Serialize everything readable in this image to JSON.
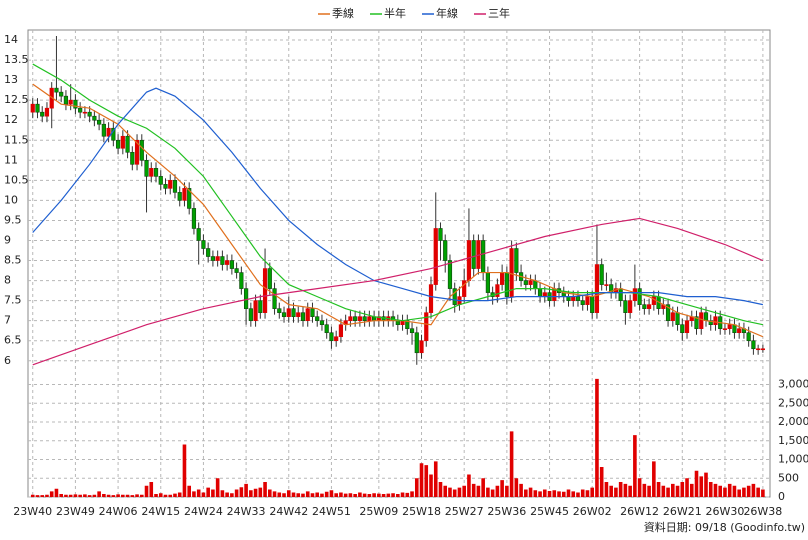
{
  "chart_data": {
    "type": "candlestick",
    "legend_position": "top",
    "grid": true,
    "up_color": "#e00000",
    "down_color": "#00a000",
    "footer": "資料日期: 09/18 (Goodinfo.tw)",
    "xlim": [
      -1,
      155.5
    ],
    "xticks": [
      {
        "value": 0,
        "label": "23W40"
      },
      {
        "value": 9,
        "label": "23W49"
      },
      {
        "value": 18,
        "label": "24W06"
      },
      {
        "value": 27,
        "label": "24W15"
      },
      {
        "value": 36,
        "label": "24W24"
      },
      {
        "value": 45,
        "label": "24W33"
      },
      {
        "value": 54,
        "label": "24W42"
      },
      {
        "value": 63,
        "label": "24W51"
      },
      {
        "value": 73,
        "label": "25W09"
      },
      {
        "value": 82,
        "label": "25W18"
      },
      {
        "value": 91,
        "label": "25W27"
      },
      {
        "value": 100,
        "label": "25W36"
      },
      {
        "value": 109,
        "label": "25W45"
      },
      {
        "value": 118,
        "label": "26W02"
      },
      {
        "value": 128,
        "label": "26W12"
      },
      {
        "value": 137,
        "label": "26W21"
      },
      {
        "value": 146,
        "label": "26W30"
      },
      {
        "value": 154,
        "label": "26W38"
      }
    ],
    "ylim": [
      5.77,
      14.25
    ],
    "yticks": [
      6,
      6.5,
      7,
      7.5,
      8,
      8.5,
      9,
      9.5,
      10,
      10.5,
      11,
      11.5,
      12,
      12.5,
      13,
      13.5,
      14
    ],
    "ohlc": [
      [
        12.2,
        12.55,
        12.05,
        12.4
      ],
      [
        12.4,
        12.55,
        12.05,
        12.2
      ],
      [
        12.2,
        12.35,
        11.95,
        12.1
      ],
      [
        12.1,
        12.45,
        11.95,
        12.3
      ],
      [
        12.3,
        12.95,
        11.8,
        12.8
      ],
      [
        12.8,
        14.1,
        12.5,
        12.7
      ],
      [
        12.7,
        12.85,
        12.45,
        12.6
      ],
      [
        12.6,
        12.75,
        12.25,
        12.4
      ],
      [
        12.4,
        12.9,
        12.25,
        12.5
      ],
      [
        12.5,
        12.65,
        12.15,
        12.3
      ],
      [
        12.3,
        12.45,
        12.05,
        12.2
      ],
      [
        12.2,
        12.35,
        12.05,
        12.2
      ],
      [
        12.2,
        12.35,
        11.95,
        12.1
      ],
      [
        12.1,
        12.25,
        11.85,
        12.0
      ],
      [
        12.0,
        12.15,
        11.75,
        11.9
      ],
      [
        11.9,
        12.05,
        11.45,
        11.6
      ],
      [
        11.6,
        11.95,
        11.45,
        11.8
      ],
      [
        11.8,
        11.95,
        11.35,
        11.5
      ],
      [
        11.5,
        11.65,
        11.15,
        11.3
      ],
      [
        11.3,
        11.75,
        11.15,
        11.6
      ],
      [
        11.6,
        11.75,
        11.05,
        11.2
      ],
      [
        11.2,
        11.35,
        10.75,
        10.9
      ],
      [
        10.9,
        11.65,
        10.75,
        11.5
      ],
      [
        11.5,
        11.65,
        10.85,
        11.0
      ],
      [
        11.0,
        11.15,
        9.7,
        10.6
      ],
      [
        10.6,
        10.95,
        10.45,
        10.8
      ],
      [
        10.8,
        10.95,
        10.45,
        10.6
      ],
      [
        10.6,
        10.75,
        10.25,
        10.4
      ],
      [
        10.4,
        10.55,
        10.15,
        10.3
      ],
      [
        10.3,
        10.65,
        10.15,
        10.5
      ],
      [
        10.5,
        10.65,
        10.05,
        10.2
      ],
      [
        10.2,
        10.35,
        9.85,
        10.0
      ],
      [
        10.0,
        10.45,
        9.85,
        10.3
      ],
      [
        10.3,
        10.45,
        9.65,
        9.8
      ],
      [
        9.8,
        9.95,
        9.15,
        9.3
      ],
      [
        9.3,
        9.45,
        8.4,
        9.0
      ],
      [
        9.0,
        9.15,
        8.65,
        8.8
      ],
      [
        8.8,
        8.95,
        8.45,
        8.6
      ],
      [
        8.6,
        8.75,
        8.35,
        8.5
      ],
      [
        8.5,
        8.75,
        8.35,
        8.6
      ],
      [
        8.6,
        8.75,
        8.25,
        8.4
      ],
      [
        8.4,
        8.65,
        8.25,
        8.5
      ],
      [
        8.5,
        8.65,
        8.15,
        8.3
      ],
      [
        8.3,
        8.45,
        8.05,
        8.2
      ],
      [
        8.2,
        8.35,
        7.65,
        7.8
      ],
      [
        7.8,
        7.95,
        6.9,
        7.3
      ],
      [
        7.3,
        7.45,
        6.85,
        7.0
      ],
      [
        7.0,
        7.65,
        6.85,
        7.5
      ],
      [
        7.5,
        7.65,
        7.05,
        7.2
      ],
      [
        7.2,
        8.8,
        7.05,
        8.3
      ],
      [
        8.3,
        8.45,
        7.65,
        7.8
      ],
      [
        7.8,
        7.95,
        7.15,
        7.3
      ],
      [
        7.3,
        7.45,
        7.05,
        7.2
      ],
      [
        7.2,
        7.35,
        6.95,
        7.1
      ],
      [
        7.1,
        7.6,
        6.95,
        7.3
      ],
      [
        7.3,
        7.45,
        6.95,
        7.1
      ],
      [
        7.1,
        7.35,
        6.95,
        7.2
      ],
      [
        7.2,
        7.35,
        6.85,
        7.0
      ],
      [
        7.0,
        7.45,
        6.85,
        7.3
      ],
      [
        7.3,
        7.45,
        6.95,
        7.1
      ],
      [
        7.1,
        7.25,
        6.85,
        7.0
      ],
      [
        7.0,
        7.15,
        6.75,
        6.9
      ],
      [
        6.9,
        7.05,
        6.55,
        6.7
      ],
      [
        6.7,
        6.85,
        6.3,
        6.5
      ],
      [
        6.5,
        6.75,
        6.35,
        6.6
      ],
      [
        6.6,
        7.05,
        6.45,
        6.9
      ],
      [
        6.9,
        7.15,
        6.75,
        7.0
      ],
      [
        7.0,
        7.25,
        6.85,
        7.1
      ],
      [
        7.1,
        7.25,
        6.85,
        7.0
      ],
      [
        7.0,
        7.25,
        6.85,
        7.1
      ],
      [
        7.1,
        7.25,
        6.85,
        7.0
      ],
      [
        7.0,
        7.25,
        6.85,
        7.1
      ],
      [
        7.1,
        7.25,
        6.85,
        7.0
      ],
      [
        7.0,
        7.25,
        6.85,
        7.1
      ],
      [
        7.1,
        7.25,
        6.85,
        7.0
      ],
      [
        7.0,
        7.25,
        6.85,
        7.1
      ],
      [
        7.1,
        7.25,
        6.85,
        7.0
      ],
      [
        7.0,
        7.15,
        6.75,
        6.9
      ],
      [
        6.9,
        7.15,
        6.75,
        7.0
      ],
      [
        7.0,
        7.15,
        6.65,
        6.8
      ],
      [
        6.8,
        6.95,
        6.4,
        6.7
      ],
      [
        6.7,
        6.85,
        5.9,
        6.2
      ],
      [
        6.2,
        6.65,
        6.05,
        6.5
      ],
      [
        6.5,
        7.35,
        6.35,
        7.2
      ],
      [
        7.2,
        8.1,
        7.05,
        7.9
      ],
      [
        7.9,
        10.2,
        7.75,
        9.3
      ],
      [
        9.3,
        9.45,
        8.5,
        9.0
      ],
      [
        9.0,
        9.15,
        8.2,
        8.5
      ],
      [
        8.5,
        8.65,
        7.5,
        7.8
      ],
      [
        7.8,
        7.95,
        7.2,
        7.4
      ],
      [
        7.4,
        7.85,
        7.25,
        7.6
      ],
      [
        7.6,
        8.3,
        7.45,
        8.0
      ],
      [
        8.0,
        9.8,
        7.85,
        9.0
      ],
      [
        9.0,
        9.15,
        8.1,
        8.3
      ],
      [
        8.3,
        9.15,
        8.15,
        9.0
      ],
      [
        9.0,
        9.15,
        8.0,
        8.2
      ],
      [
        8.2,
        8.35,
        7.5,
        7.7
      ],
      [
        7.7,
        7.85,
        7.4,
        7.6
      ],
      [
        7.6,
        8.05,
        7.45,
        7.9
      ],
      [
        7.9,
        8.4,
        7.75,
        8.2
      ],
      [
        8.2,
        8.35,
        7.4,
        7.6
      ],
      [
        7.6,
        9.0,
        7.45,
        8.8
      ],
      [
        8.8,
        8.95,
        8.0,
        8.2
      ],
      [
        8.2,
        8.4,
        7.85,
        8.0
      ],
      [
        8.0,
        8.15,
        7.75,
        7.9
      ],
      [
        7.9,
        8.15,
        7.75,
        8.0
      ],
      [
        8.0,
        8.15,
        7.65,
        7.8
      ],
      [
        7.8,
        7.95,
        7.45,
        7.6
      ],
      [
        7.6,
        7.85,
        7.45,
        7.7
      ],
      [
        7.7,
        7.85,
        7.35,
        7.5
      ],
      [
        7.5,
        7.95,
        7.35,
        7.8
      ],
      [
        7.8,
        7.95,
        7.55,
        7.7
      ],
      [
        7.7,
        7.85,
        7.45,
        7.6
      ],
      [
        7.6,
        7.75,
        7.35,
        7.5
      ],
      [
        7.5,
        7.75,
        7.35,
        7.6
      ],
      [
        7.6,
        7.75,
        7.35,
        7.5
      ],
      [
        7.5,
        7.65,
        7.25,
        7.4
      ],
      [
        7.4,
        7.75,
        7.25,
        7.6
      ],
      [
        7.6,
        7.75,
        7.05,
        7.2
      ],
      [
        7.2,
        9.4,
        7.05,
        8.4
      ],
      [
        8.4,
        8.55,
        7.75,
        7.9
      ],
      [
        7.9,
        8.2,
        7.75,
        7.9
      ],
      [
        7.9,
        8.05,
        7.55,
        7.7
      ],
      [
        7.7,
        7.95,
        7.55,
        7.8
      ],
      [
        7.8,
        7.95,
        7.35,
        7.5
      ],
      [
        7.5,
        7.65,
        6.9,
        7.2
      ],
      [
        7.2,
        7.65,
        7.05,
        7.5
      ],
      [
        7.5,
        8.4,
        7.35,
        7.8
      ],
      [
        7.8,
        7.95,
        7.25,
        7.4
      ],
      [
        7.4,
        7.55,
        7.15,
        7.3
      ],
      [
        7.3,
        7.55,
        7.15,
        7.4
      ],
      [
        7.4,
        7.75,
        7.25,
        7.6
      ],
      [
        7.6,
        7.75,
        7.15,
        7.3
      ],
      [
        7.3,
        7.55,
        7.15,
        7.4
      ],
      [
        7.4,
        7.55,
        6.85,
        7.0
      ],
      [
        7.0,
        7.35,
        6.85,
        7.2
      ],
      [
        7.2,
        7.35,
        6.75,
        6.9
      ],
      [
        6.9,
        7.05,
        6.5,
        6.7
      ],
      [
        6.7,
        7.15,
        6.55,
        7.0
      ],
      [
        7.0,
        7.25,
        6.85,
        7.1
      ],
      [
        7.1,
        7.25,
        6.65,
        6.8
      ],
      [
        6.8,
        7.35,
        6.65,
        7.2
      ],
      [
        7.2,
        7.35,
        6.85,
        7.0
      ],
      [
        7.0,
        7.15,
        6.75,
        6.9
      ],
      [
        6.9,
        7.25,
        6.75,
        7.1
      ],
      [
        7.1,
        7.25,
        6.65,
        6.8
      ],
      [
        6.8,
        6.95,
        6.65,
        6.8
      ],
      [
        6.8,
        7.05,
        6.65,
        6.9
      ],
      [
        6.9,
        7.05,
        6.55,
        6.7
      ],
      [
        6.7,
        6.95,
        6.55,
        6.8
      ],
      [
        6.8,
        6.95,
        6.55,
        6.7
      ],
      [
        6.7,
        6.85,
        6.35,
        6.5
      ],
      [
        6.5,
        6.65,
        6.15,
        6.3
      ],
      [
        6.3,
        6.4,
        6.15,
        6.3
      ],
      [
        6.3,
        6.4,
        6.2,
        6.3
      ]
    ],
    "series": [
      {
        "name": "季線",
        "color": "#e0701e",
        "x": [
          0,
          6,
          12,
          18,
          24,
          30,
          36,
          42,
          48,
          54,
          60,
          66,
          72,
          78,
          84,
          88,
          94,
          100,
          106,
          112,
          118,
          124,
          130,
          136,
          142,
          148,
          154
        ],
        "values": [
          12.9,
          12.4,
          12.3,
          11.9,
          11.2,
          10.6,
          9.9,
          8.9,
          7.9,
          7.4,
          7.3,
          6.9,
          7.0,
          7.0,
          6.9,
          7.6,
          8.2,
          8.2,
          8.0,
          7.7,
          7.6,
          7.8,
          7.6,
          7.2,
          7.0,
          6.9,
          6.6
        ]
      },
      {
        "name": "半年",
        "color": "#22c022",
        "x": [
          0,
          6,
          12,
          18,
          24,
          30,
          36,
          42,
          48,
          54,
          60,
          66,
          72,
          78,
          84,
          90,
          96,
          102,
          108,
          114,
          120,
          126,
          132,
          138,
          144,
          150,
          154
        ],
        "values": [
          13.4,
          13.0,
          12.5,
          12.1,
          11.8,
          11.3,
          10.6,
          9.6,
          8.6,
          7.9,
          7.6,
          7.3,
          7.1,
          7.0,
          7.1,
          7.4,
          7.6,
          7.8,
          7.8,
          7.7,
          7.7,
          7.7,
          7.6,
          7.4,
          7.2,
          7.0,
          6.9
        ]
      },
      {
        "name": "年線",
        "color": "#1f5fd0",
        "x": [
          0,
          6,
          12,
          18,
          24,
          26,
          30,
          36,
          42,
          48,
          54,
          60,
          66,
          72,
          78,
          84,
          90,
          96,
          102,
          108,
          114,
          120,
          126,
          132,
          138,
          144,
          150,
          154
        ],
        "values": [
          9.2,
          10.0,
          10.9,
          11.9,
          12.7,
          12.8,
          12.6,
          12.0,
          11.2,
          10.3,
          9.5,
          8.9,
          8.4,
          8.0,
          7.8,
          7.6,
          7.5,
          7.5,
          7.6,
          7.6,
          7.6,
          7.7,
          7.7,
          7.7,
          7.6,
          7.6,
          7.5,
          7.4
        ]
      },
      {
        "name": "三年",
        "color": "#d0206a",
        "x": [
          0,
          12,
          24,
          36,
          48,
          60,
          72,
          84,
          96,
          108,
          120,
          128,
          136,
          146,
          154
        ],
        "values": [
          5.9,
          6.4,
          6.9,
          7.3,
          7.6,
          7.8,
          8.0,
          8.3,
          8.7,
          9.1,
          9.4,
          9.55,
          9.3,
          8.9,
          8.5
        ]
      }
    ],
    "volume": {
      "color": "#e00000",
      "ylim": [
        0,
        3200
      ],
      "yticks": [
        0,
        {
          "value": 500,
          "label": "500"
        },
        {
          "value": 1000,
          "label": "1,000"
        },
        {
          "value": 1500,
          "label": "1,500"
        },
        {
          "value": 2000,
          "label": "2,000"
        },
        {
          "value": 2500,
          "label": "2,500"
        },
        {
          "value": 3000,
          "label": "3,000"
        }
      ],
      "values": [
        60,
        50,
        50,
        60,
        150,
        220,
        80,
        60,
        60,
        70,
        60,
        70,
        50,
        60,
        150,
        80,
        60,
        50,
        70,
        60,
        60,
        50,
        70,
        60,
        300,
        400,
        80,
        100,
        60,
        60,
        90,
        120,
        1400,
        300,
        150,
        200,
        120,
        250,
        200,
        500,
        180,
        120,
        100,
        200,
        260,
        350,
        180,
        220,
        250,
        400,
        200,
        150,
        120,
        100,
        180,
        120,
        100,
        90,
        150,
        100,
        120,
        90,
        140,
        180,
        100,
        120,
        90,
        100,
        80,
        120,
        90,
        80,
        100,
        90,
        80,
        90,
        100,
        80,
        120,
        110,
        150,
        500,
        900,
        850,
        600,
        950,
        400,
        300,
        250,
        200,
        250,
        300,
        600,
        350,
        300,
        500,
        250,
        200,
        300,
        450,
        300,
        1750,
        500,
        350,
        200,
        250,
        180,
        150,
        200,
        160,
        180,
        150,
        140,
        200,
        150,
        120,
        200,
        180,
        250,
        3150,
        800,
        400,
        300,
        250,
        400,
        350,
        300,
        1650,
        500,
        350,
        300,
        950,
        400,
        300,
        250,
        350,
        300,
        400,
        500,
        350,
        700,
        550,
        650,
        400,
        350,
        300,
        250,
        350,
        300,
        200,
        250,
        300,
        350,
        250,
        200
      ]
    }
  }
}
